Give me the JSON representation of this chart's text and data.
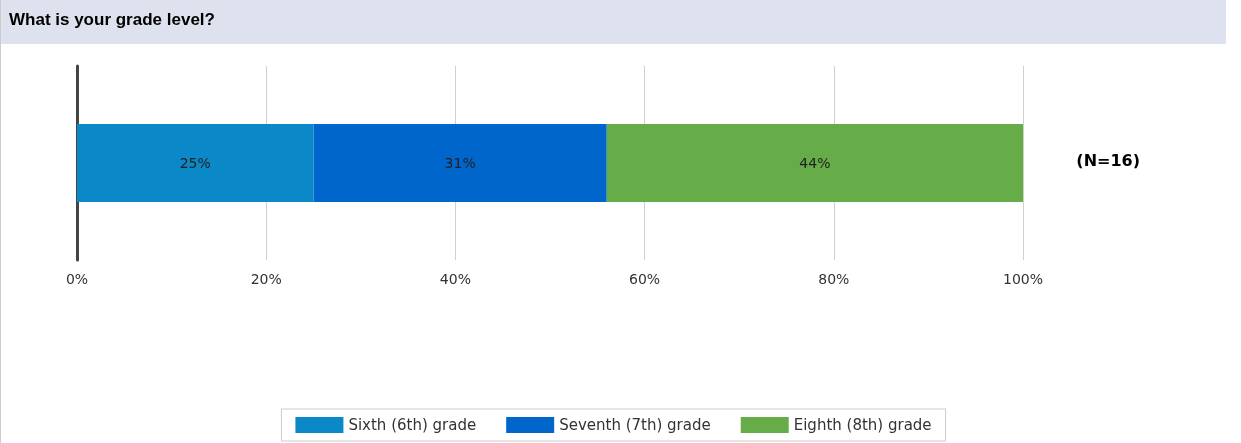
{
  "chart_data": {
    "type": "bar",
    "title": "What is your grade level?",
    "orientation": "horizontal",
    "stacked": true,
    "categories": [
      null
    ],
    "series": [
      {
        "name": "Sixth (6th) grade",
        "color": "#0a88c8",
        "values": [
          25
        ],
        "value_labels": [
          "25%"
        ]
      },
      {
        "name": "Seventh (7th) grade",
        "color": "#0066cc",
        "values": [
          31
        ],
        "value_labels": [
          "31%"
        ]
      },
      {
        "name": "Eighth (8th) grade",
        "color": "#66ad4a",
        "values": [
          44
        ],
        "value_labels": [
          "44%"
        ]
      }
    ],
    "xlim": [
      0,
      100
    ],
    "xticks": [
      {
        "value": 0,
        "label": "0%"
      },
      {
        "value": 20,
        "label": "20%"
      },
      {
        "value": 40,
        "label": "40%"
      },
      {
        "value": 60,
        "label": "60%"
      },
      {
        "value": 80,
        "label": "80%"
      },
      {
        "value": 100,
        "label": "100%"
      }
    ],
    "grid": "x",
    "legend": "bottom",
    "annotations": [
      "(N=16)"
    ]
  }
}
